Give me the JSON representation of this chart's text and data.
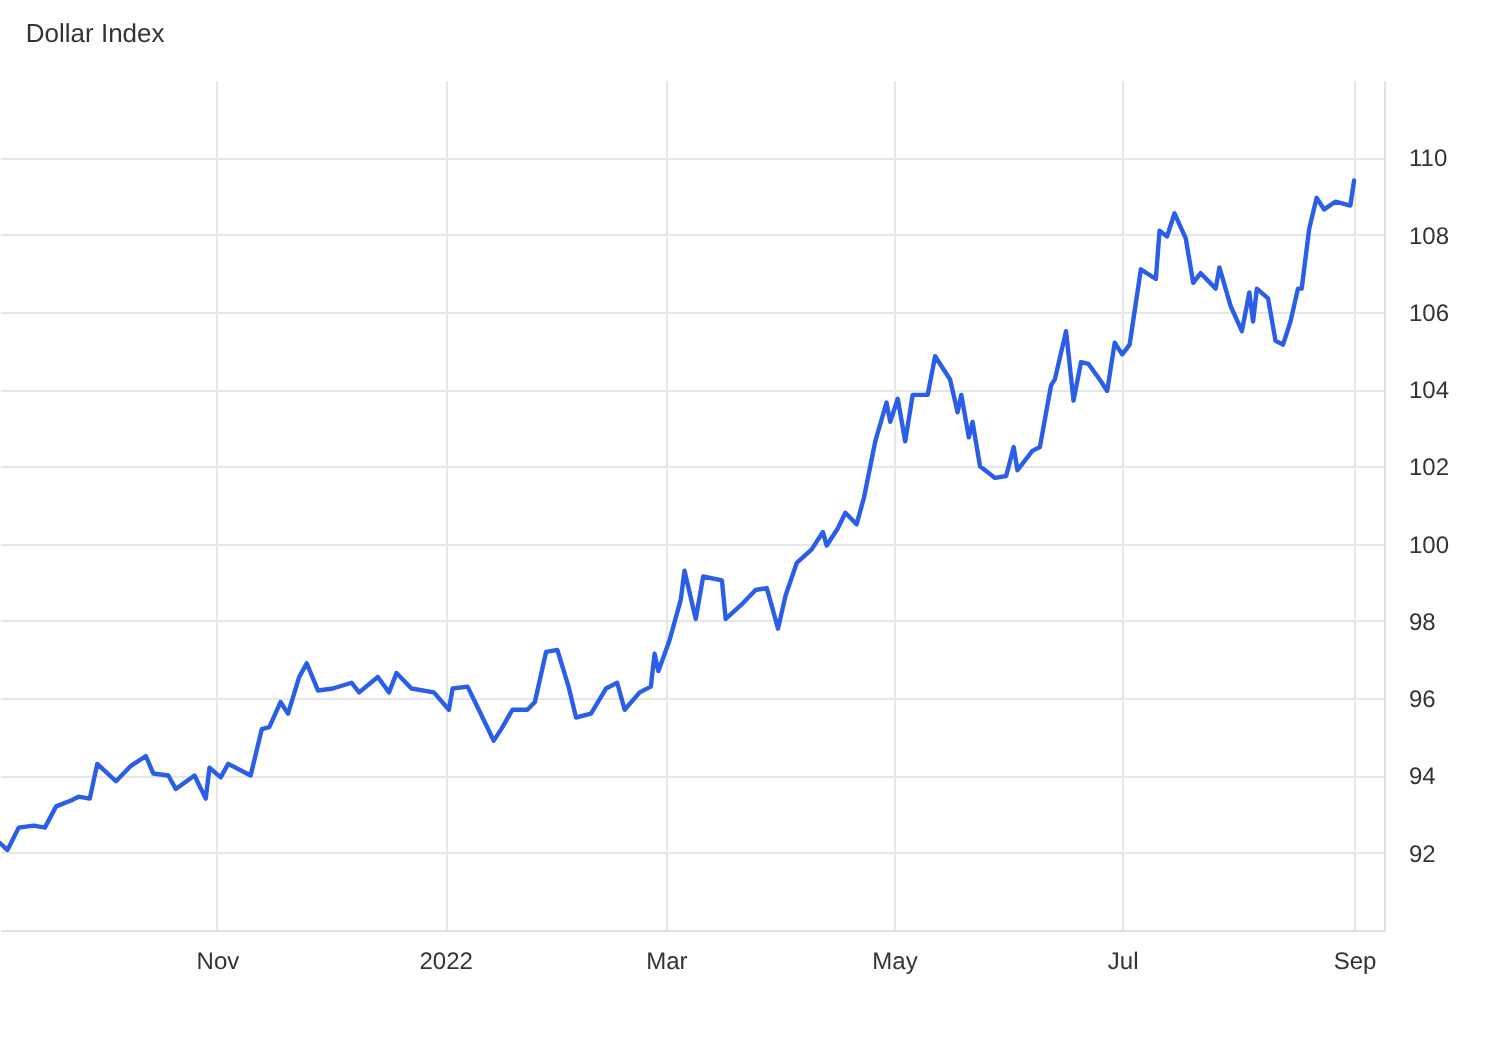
{
  "chart_data": {
    "type": "line",
    "title": "Dollar Index",
    "x": [
      "2021-09-04",
      "2021-09-06",
      "2021-09-09",
      "2021-09-13",
      "2021-09-16",
      "2021-09-19",
      "2021-09-23",
      "2021-09-25",
      "2021-09-28",
      "2021-09-30",
      "2021-10-05",
      "2021-10-09",
      "2021-10-13",
      "2021-10-15",
      "2021-10-19",
      "2021-10-21",
      "2021-10-26",
      "2021-10-29",
      "2021-10-30",
      "2021-11-02",
      "2021-11-04",
      "2021-11-10",
      "2021-11-13",
      "2021-11-15",
      "2021-11-18",
      "2021-11-20",
      "2021-11-23",
      "2021-11-25",
      "2021-11-28",
      "2021-12-02",
      "2021-12-07",
      "2021-12-09",
      "2021-12-14",
      "2021-12-17",
      "2021-12-19",
      "2021-12-23",
      "2021-12-29",
      "2022-01-02",
      "2022-01-03",
      "2022-01-07",
      "2022-01-10",
      "2022-01-14",
      "2022-01-16",
      "2022-01-19",
      "2022-01-23",
      "2022-01-25",
      "2022-01-28",
      "2022-01-31",
      "2022-02-03",
      "2022-02-05",
      "2022-02-09",
      "2022-02-13",
      "2022-02-16",
      "2022-02-18",
      "2022-02-22",
      "2022-02-25",
      "2022-02-26",
      "2022-02-27",
      "2022-03-02",
      "2022-03-05",
      "2022-03-06",
      "2022-03-09",
      "2022-03-11",
      "2022-03-16",
      "2022-03-17",
      "2022-03-21",
      "2022-03-25",
      "2022-03-28",
      "2022-03-31",
      "2022-04-02",
      "2022-04-05",
      "2022-04-09",
      "2022-04-12",
      "2022-04-13",
      "2022-04-16",
      "2022-04-18",
      "2022-04-21",
      "2022-04-23",
      "2022-04-26",
      "2022-04-29",
      "2022-04-30",
      "2022-05-02",
      "2022-05-04",
      "2022-05-06",
      "2022-05-10",
      "2022-05-12",
      "2022-05-16",
      "2022-05-18",
      "2022-05-19",
      "2022-05-21",
      "2022-05-22",
      "2022-05-24",
      "2022-05-28",
      "2022-05-31",
      "2022-06-02",
      "2022-06-03",
      "2022-06-07",
      "2022-06-09",
      "2022-06-12",
      "2022-06-13",
      "2022-06-16",
      "2022-06-18",
      "2022-06-20",
      "2022-06-22",
      "2022-06-25",
      "2022-06-27",
      "2022-06-29",
      "2022-07-01",
      "2022-07-03",
      "2022-07-06",
      "2022-07-10",
      "2022-07-11",
      "2022-07-13",
      "2022-07-15",
      "2022-07-18",
      "2022-07-20",
      "2022-07-22",
      "2022-07-26",
      "2022-07-27",
      "2022-07-30",
      "2022-08-02",
      "2022-08-04",
      "2022-08-05",
      "2022-08-06",
      "2022-08-09",
      "2022-08-11",
      "2022-08-13",
      "2022-08-15",
      "2022-08-17",
      "2022-08-18",
      "2022-08-20",
      "2022-08-22",
      "2022-08-24",
      "2022-08-27",
      "2022-08-31",
      "2022-09-01"
    ],
    "series": [
      {
        "color": "#2a5ee8",
        "values": [
          92.25,
          92.07,
          92.65,
          92.7,
          92.65,
          93.2,
          93.35,
          93.45,
          93.4,
          94.3,
          93.85,
          94.25,
          94.5,
          94.05,
          94.0,
          93.65,
          94.0,
          93.4,
          94.2,
          93.95,
          94.3,
          94.0,
          95.2,
          95.25,
          95.9,
          95.6,
          96.55,
          96.9,
          96.2,
          96.25,
          96.4,
          96.15,
          96.55,
          96.15,
          96.65,
          96.25,
          96.15,
          95.7,
          96.25,
          96.3,
          95.7,
          94.9,
          95.2,
          95.7,
          95.7,
          95.9,
          97.2,
          97.25,
          96.3,
          95.5,
          95.6,
          96.25,
          96.4,
          95.7,
          96.15,
          96.3,
          97.15,
          96.7,
          97.5,
          98.55,
          99.3,
          98.05,
          99.15,
          99.05,
          98.05,
          98.4,
          98.8,
          98.85,
          97.8,
          98.65,
          99.5,
          99.85,
          100.3,
          99.95,
          100.4,
          100.8,
          100.5,
          101.2,
          102.65,
          103.65,
          103.15,
          103.75,
          102.65,
          103.85,
          103.85,
          104.85,
          104.25,
          103.4,
          103.85,
          102.75,
          103.15,
          102.0,
          101.7,
          101.75,
          102.5,
          101.9,
          102.4,
          102.5,
          104.1,
          104.25,
          105.5,
          103.7,
          104.7,
          104.65,
          104.25,
          103.95,
          105.2,
          104.9,
          105.15,
          107.1,
          106.85,
          108.1,
          107.95,
          108.55,
          107.9,
          106.75,
          107.0,
          106.6,
          107.15,
          106.15,
          105.5,
          106.5,
          105.75,
          106.6,
          106.35,
          105.25,
          105.15,
          105.75,
          106.6,
          106.6,
          108.15,
          108.95,
          108.65,
          108.85,
          108.75,
          109.4
        ]
      }
    ],
    "xlim": [
      "2021-09-04",
      "2022-09-09"
    ],
    "xticks": [
      {
        "value": "2021-11-01",
        "label": "Nov"
      },
      {
        "value": "2022-01-01",
        "label": "2022"
      },
      {
        "value": "2022-03-01",
        "label": "Mar"
      },
      {
        "value": "2022-05-01",
        "label": "May"
      },
      {
        "value": "2022-07-01",
        "label": "Jul"
      },
      {
        "value": "2022-09-01",
        "label": "Sep"
      }
    ],
    "ylim": [
      90,
      112
    ],
    "yticks": [
      92,
      94,
      96,
      98,
      100,
      102,
      104,
      106,
      108,
      110
    ],
    "grid": true,
    "line_style": "solid"
  }
}
